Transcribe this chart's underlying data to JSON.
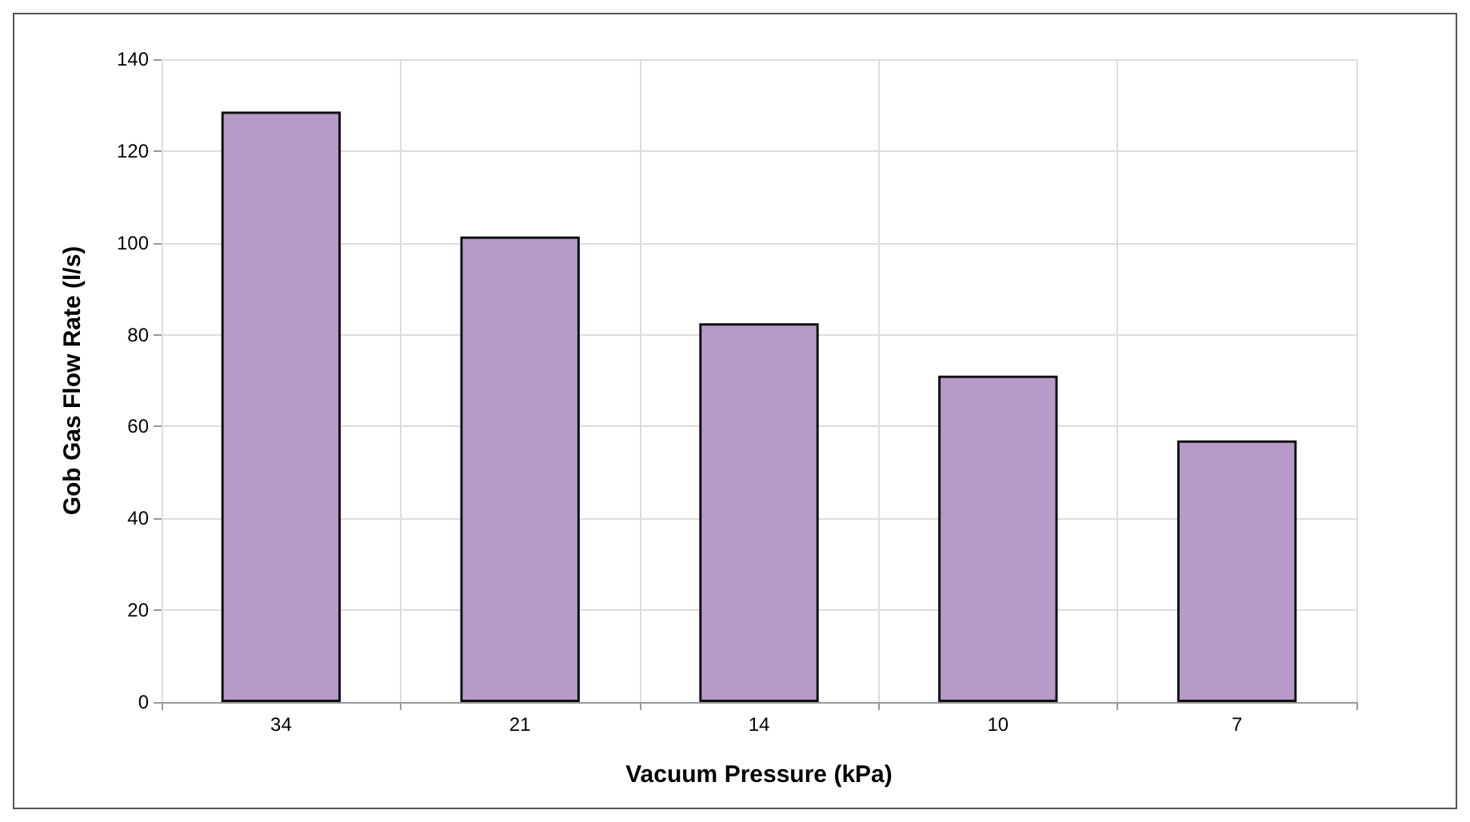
{
  "chart_data": {
    "type": "bar",
    "xlabel": "Vacuum Pressure (kPa)",
    "ylabel": "Gob Gas Flow Rate (l/s)",
    "categories": [
      "34",
      "21",
      "14",
      "10",
      "7"
    ],
    "values": [
      128.6,
      101.4,
      82.5,
      71.1,
      57.0
    ],
    "color": "#b79ac8",
    "ylim": [
      0,
      140
    ],
    "yticks": [
      0,
      20,
      40,
      60,
      80,
      100,
      120,
      140
    ],
    "grid": true
  }
}
